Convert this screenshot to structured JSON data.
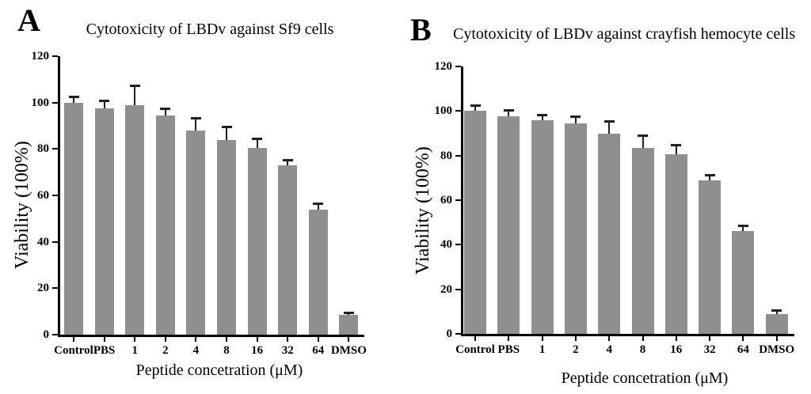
{
  "figure": {
    "background": "#ffffff",
    "bar_color": "#8f8f8f",
    "axis_color": "#000000",
    "error_bar_color": "#231f20"
  },
  "chart_data": [
    {
      "type": "bar",
      "panel_label": "A",
      "title": "Cytotoxicity of LBDv against Sf9 cells",
      "categories": [
        "Control",
        "PBS",
        "1",
        "2",
        "4",
        "8",
        "16",
        "32",
        "64",
        "DMSO"
      ],
      "values": [
        100,
        97.5,
        99,
        94.5,
        88,
        84,
        80.5,
        73,
        54,
        8.5
      ],
      "errors": [
        2.5,
        3.5,
        8.5,
        3,
        5.5,
        5.5,
        4,
        2.5,
        2.5,
        1
      ],
      "xlabel": "Peptide concetration (μM)",
      "ylabel": "Viability (100%)",
      "ylim": [
        0,
        120
      ],
      "yticks": [
        0,
        20,
        40,
        60,
        80,
        100,
        120
      ],
      "grid": "off",
      "legend": "none",
      "error_bars": "upper-only"
    },
    {
      "type": "bar",
      "panel_label": "B",
      "title": "Cytotoxicity of LBDv against crayfish hemocyte cells",
      "categories": [
        "Control",
        "PBS",
        "1",
        "2",
        "4",
        "8",
        "16",
        "32",
        "64",
        "DMSO"
      ],
      "values": [
        100,
        97.5,
        96,
        94.5,
        90,
        83.5,
        80.5,
        69,
        46,
        9
      ],
      "errors": [
        2.5,
        3,
        2.5,
        3,
        5.5,
        5.5,
        4.5,
        2.5,
        2.5,
        1.5
      ],
      "xlabel": "Peptide concetration (μM)",
      "ylabel": "Viability (100%)",
      "ylim": [
        0,
        120
      ],
      "yticks": [
        0,
        20,
        40,
        60,
        80,
        100,
        120
      ],
      "grid": "off",
      "legend": "none",
      "error_bars": "upper-only"
    }
  ]
}
